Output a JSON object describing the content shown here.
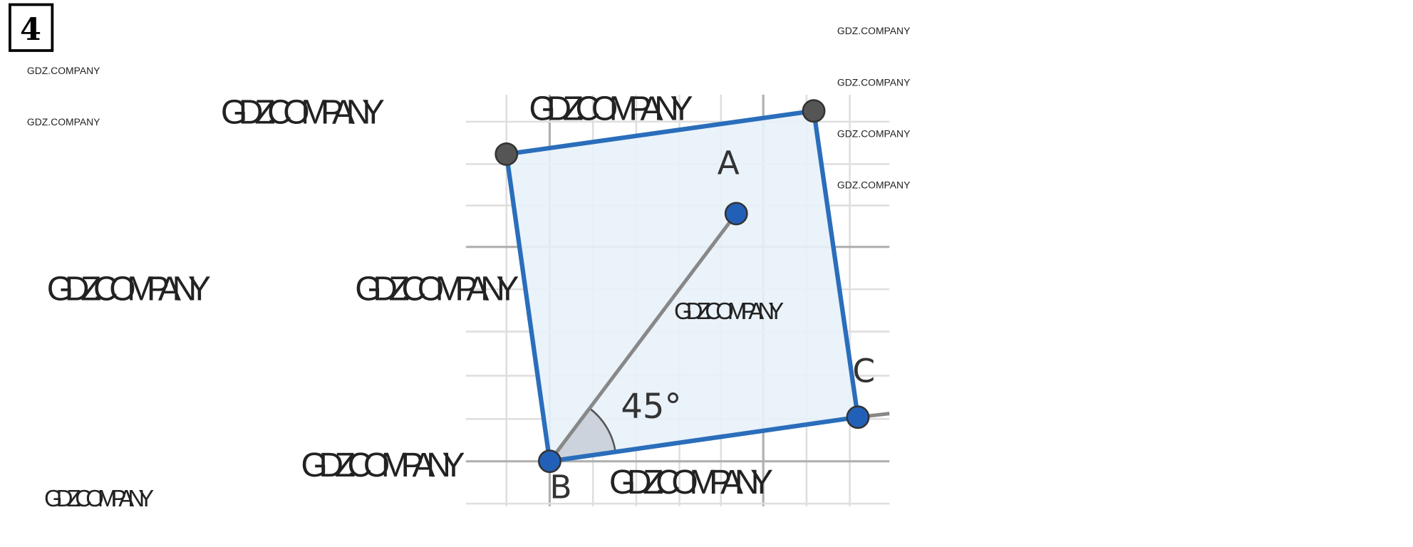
{
  "problem_number": "4",
  "points": {
    "A": "A",
    "B": "B",
    "C": "C"
  },
  "angle_label": "45°",
  "colors": {
    "square_stroke": "#2a6ebb",
    "square_fill": "#e8f1fa",
    "point_blue": "#2260b8",
    "point_gray": "#555555",
    "grid": "#d8d8d8",
    "axis": "#b0b0b0"
  },
  "watermarks": [
    "GDZ.COMPANY",
    "GDZ.COMPANY",
    "GDZ.COMPANY",
    "GDZ.COMPANY",
    "GDZ.COMPANY",
    "GDZ.COMPANY",
    "GDZ.COMPANY",
    "GDZ.COMPANY",
    "GDZ.COMPANY",
    "GDZ.COMPANY",
    "GDZ.COMPANY",
    "GDZ.COMPANY",
    "GDZ.COMPANY",
    "GDZ.COMPANY"
  ]
}
